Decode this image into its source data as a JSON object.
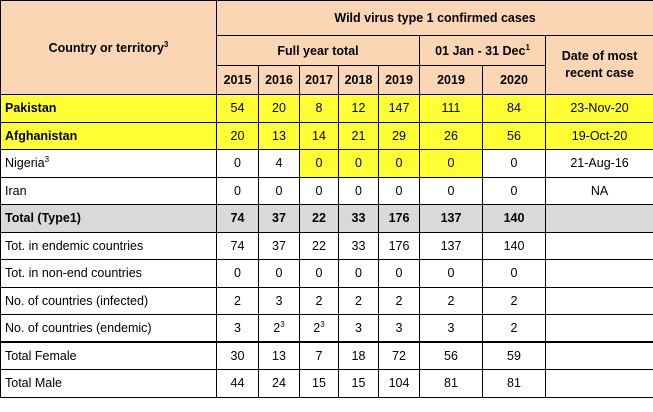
{
  "header": {
    "country_label": "Country or territory",
    "country_sup": "3",
    "wild_virus_title": "Wild virus type 1 confirmed cases",
    "full_year_label": "Full year total",
    "period_label": "01 Jan - 31 Dec",
    "period_sup": "1",
    "recent_label": "Date of most recent case",
    "years_full": [
      "2015",
      "2016",
      "2017",
      "2018",
      "2019"
    ],
    "years_period": [
      "2019",
      "2020"
    ]
  },
  "rows": [
    {
      "label": "Pakistan",
      "label_sup": "",
      "values": [
        "54",
        "20",
        "8",
        "12",
        "147",
        "111",
        "84"
      ],
      "sups": [
        "",
        "",
        "",
        "",
        "",
        "",
        ""
      ],
      "recent": "23-Nov-20",
      "style": "highlight"
    },
    {
      "label": "Afghanistan",
      "label_sup": "",
      "values": [
        "20",
        "13",
        "14",
        "21",
        "29",
        "26",
        "56"
      ],
      "sups": [
        "",
        "",
        "",
        "",
        "",
        "",
        ""
      ],
      "recent": "19-Oct-20",
      "style": "highlight"
    },
    {
      "label": "Nigeria",
      "label_sup": "3",
      "values": [
        "0",
        "4",
        "0",
        "0",
        "0",
        "0",
        "0"
      ],
      "sups": [
        "",
        "",
        "",
        "",
        "",
        "",
        ""
      ],
      "recent": "21-Aug-16",
      "style": "partial",
      "highlight_cols": [
        2,
        3,
        4,
        5
      ]
    },
    {
      "label": "Iran",
      "label_sup": "",
      "values": [
        "0",
        "0",
        "0",
        "0",
        "0",
        "0",
        "0"
      ],
      "sups": [
        "",
        "",
        "",
        "",
        "",
        "",
        ""
      ],
      "recent": "NA",
      "style": "plain"
    },
    {
      "label": "Total (Type1)",
      "label_sup": "",
      "values": [
        "74",
        "37",
        "22",
        "33",
        "176",
        "137",
        "140"
      ],
      "sups": [
        "",
        "",
        "",
        "",
        "",
        "",
        ""
      ],
      "recent": "",
      "style": "total"
    },
    {
      "label": "Tot. in endemic countries",
      "label_sup": "",
      "values": [
        "74",
        "37",
        "22",
        "33",
        "176",
        "137",
        "140"
      ],
      "sups": [
        "",
        "",
        "",
        "",
        "",
        "",
        ""
      ],
      "recent": "",
      "style": "plain"
    },
    {
      "label": "Tot. in non-end countries",
      "label_sup": "",
      "values": [
        "0",
        "0",
        "0",
        "0",
        "0",
        "0",
        "0"
      ],
      "sups": [
        "",
        "",
        "",
        "",
        "",
        "",
        ""
      ],
      "recent": "",
      "style": "plain"
    },
    {
      "label": "No. of countries (infected)",
      "label_sup": "",
      "values": [
        "2",
        "3",
        "2",
        "2",
        "2",
        "2",
        "2"
      ],
      "sups": [
        "",
        "",
        "",
        "",
        "",
        "",
        ""
      ],
      "recent": "",
      "style": "plain"
    },
    {
      "label": "No. of countries (endemic)",
      "label_sup": "",
      "values": [
        "3",
        "2",
        "2",
        "3",
        "3",
        "3",
        "2"
      ],
      "sups": [
        "",
        "3",
        "3",
        "",
        "",
        "",
        ""
      ],
      "recent": "",
      "style": "plain"
    },
    {
      "label": "Total Female",
      "label_sup": "",
      "values": [
        "30",
        "13",
        "7",
        "18",
        "72",
        "56",
        "59"
      ],
      "sups": [
        "",
        "",
        "",
        "",
        "",
        "",
        ""
      ],
      "recent": "",
      "style": "plain"
    },
    {
      "label": "Total Male",
      "label_sup": "",
      "values": [
        "44",
        "24",
        "15",
        "15",
        "104",
        "81",
        "81"
      ],
      "sups": [
        "",
        "",
        "",
        "",
        "",
        "",
        ""
      ],
      "recent": "",
      "style": "plain"
    }
  ]
}
